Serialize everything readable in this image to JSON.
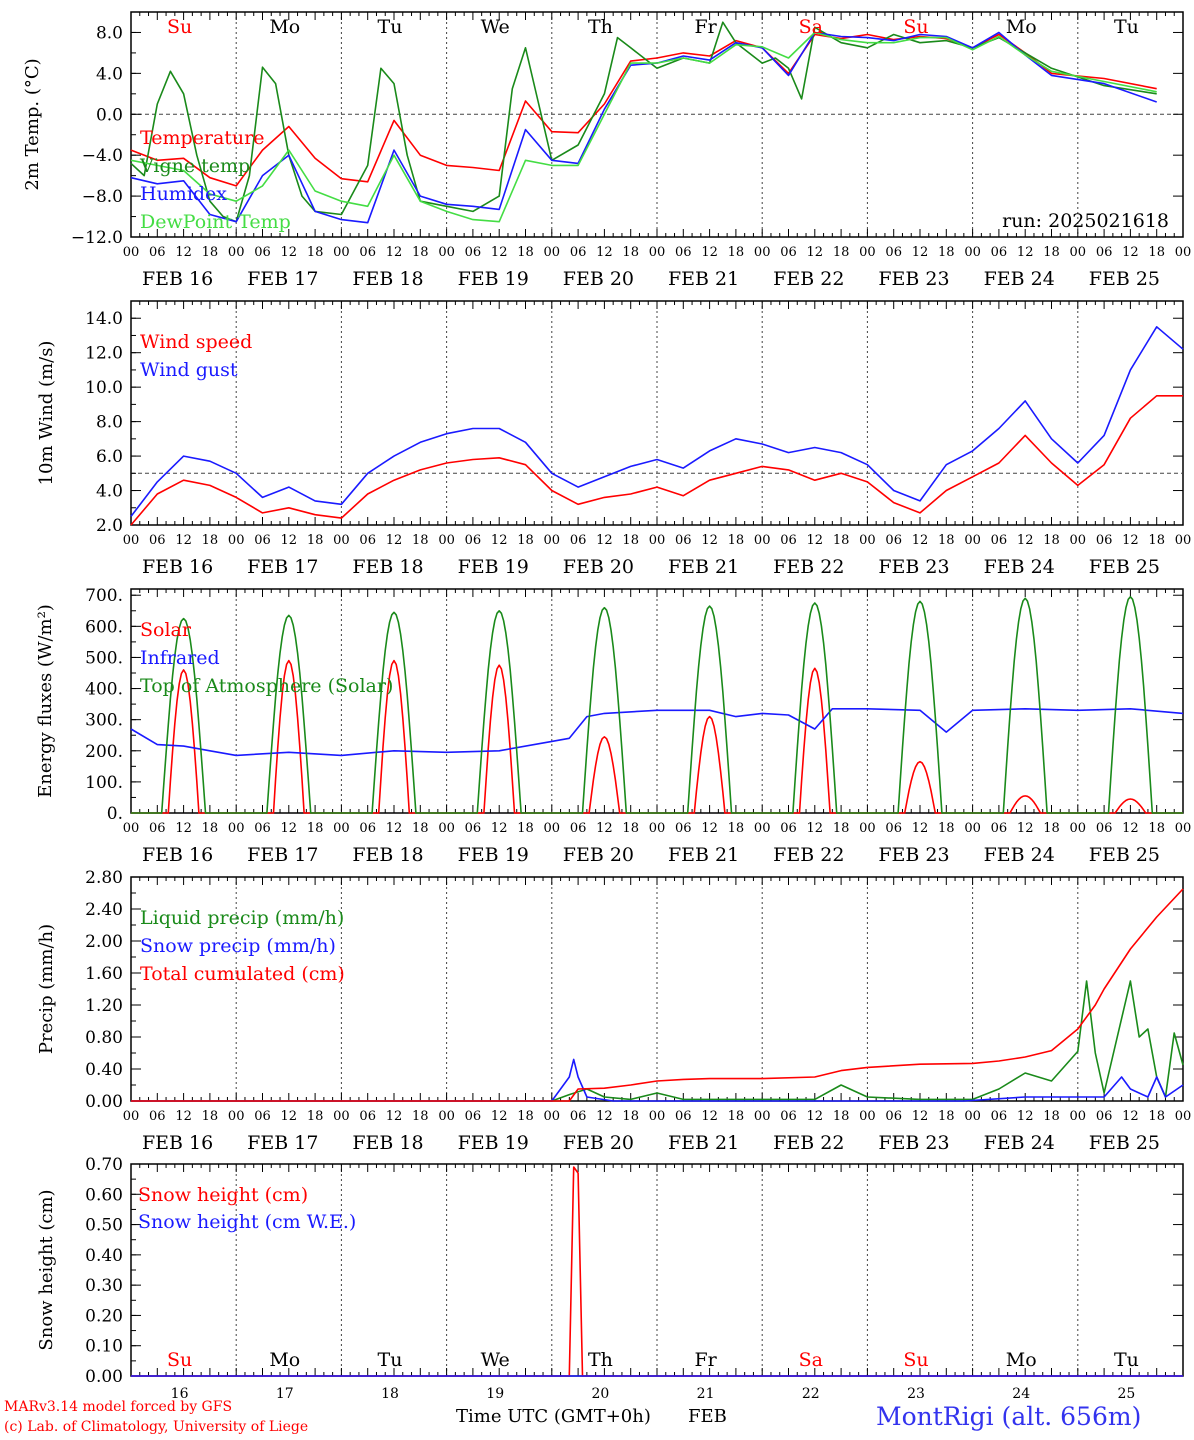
{
  "run_label": "run: 2025021618",
  "colors": {
    "red": "#ff0000",
    "green": "#1a8a1a",
    "blue": "#1a1aff",
    "lightgreen": "#44dd44",
    "axis": "#000000"
  },
  "weekdays": [
    "Su",
    "Mo",
    "Tu",
    "We",
    "Th",
    "Fr",
    "Sa",
    "Su",
    "Mo",
    "Tu"
  ],
  "weekday_colors": [
    "red",
    "black",
    "black",
    "black",
    "black",
    "black",
    "red",
    "red",
    "black",
    "black"
  ],
  "date_labels": [
    "FEB 16",
    "FEB 17",
    "FEB 18",
    "FEB 19",
    "FEB 20",
    "FEB 21",
    "FEB 22",
    "FEB 23",
    "FEB 24",
    "FEB 25"
  ],
  "day_numbers": [
    "16",
    "17",
    "18",
    "19",
    "20",
    "21",
    "22",
    "23",
    "24",
    "25"
  ],
  "hour_ticks": [
    "00",
    "06",
    "12",
    "18"
  ],
  "footer": {
    "model": "MARv3.14 model forced by GFS",
    "copyright": "(c) Lab. of Climatology, University of Liege",
    "xlabel": "Time UTC (GMT+0h)",
    "month": "FEB",
    "station": "MontRigi (alt. 656m)"
  },
  "chart_data": [
    {
      "type": "line",
      "ylabel": "2m Temp. (°C)",
      "ylim": [
        -12,
        10
      ],
      "yticks": [
        -12,
        -8,
        -4,
        0,
        4,
        8
      ],
      "tick_labels": [
        "−12.0",
        "−8.0",
        "−4.0",
        "0.0",
        "4.0",
        "8.0"
      ],
      "reference_line": 0,
      "x_unit": "hours since FEB 16 00 UTC",
      "series": [
        {
          "name": "Temperature",
          "color": "red",
          "x": [
            0,
            6,
            12,
            18,
            24,
            30,
            36,
            42,
            48,
            54,
            60,
            66,
            72,
            78,
            84,
            90,
            96,
            102,
            108,
            114,
            120,
            126,
            132,
            138,
            144,
            150,
            156,
            162,
            168,
            174,
            180,
            186,
            192,
            198,
            204,
            210,
            222,
            234
          ],
          "values": [
            -3.5,
            -4.5,
            -4.3,
            -6.2,
            -7.0,
            -3.5,
            -1.2,
            -4.3,
            -6.3,
            -6.6,
            -0.6,
            -4.0,
            -5.0,
            -5.2,
            -5.5,
            1.3,
            -1.7,
            -1.8,
            1.0,
            5.2,
            5.5,
            6.0,
            5.7,
            7.2,
            6.5,
            4.0,
            7.8,
            7.4,
            7.8,
            7.3,
            7.6,
            7.4,
            6.5,
            7.8,
            6.0,
            4.0,
            3.5,
            2.5
          ]
        },
        {
          "name": "Vigne temp",
          "color": "green",
          "x": [
            0,
            3,
            6,
            9,
            12,
            15,
            18,
            21,
            24,
            27,
            30,
            33,
            36,
            39,
            42,
            48,
            54,
            57,
            60,
            63,
            66,
            72,
            78,
            84,
            87,
            90,
            93,
            96,
            102,
            108,
            111,
            114,
            120,
            126,
            132,
            135,
            138,
            144,
            147,
            150,
            153,
            156,
            162,
            168,
            174,
            180,
            186,
            192,
            198,
            204,
            210,
            222,
            234
          ],
          "values": [
            -4.8,
            -6.0,
            1.0,
            4.2,
            2.0,
            -4.0,
            -8.5,
            -10.0,
            -10.5,
            -6.0,
            4.6,
            3.0,
            -4.0,
            -8.0,
            -9.5,
            -9.8,
            -5.0,
            4.5,
            3.0,
            -4.0,
            -8.5,
            -9.0,
            -9.5,
            -8.0,
            2.5,
            6.5,
            1.0,
            -4.5,
            -3.0,
            2.0,
            7.5,
            6.5,
            4.5,
            5.5,
            5.0,
            9.0,
            7.0,
            5.0,
            5.5,
            4.5,
            1.5,
            8.5,
            7.0,
            6.5,
            7.8,
            7.0,
            7.2,
            6.5,
            7.5,
            6.0,
            4.5,
            2.8,
            2.0
          ]
        },
        {
          "name": "Humidex",
          "color": "blue",
          "x": [
            0,
            6,
            12,
            18,
            24,
            30,
            36,
            42,
            48,
            54,
            60,
            66,
            72,
            78,
            84,
            90,
            96,
            102,
            108,
            114,
            120,
            126,
            132,
            138,
            144,
            150,
            156,
            162,
            168,
            174,
            180,
            186,
            192,
            198,
            204,
            210,
            222,
            234
          ],
          "values": [
            -6.2,
            -6.8,
            -6.5,
            -9.8,
            -10.5,
            -6.0,
            -4.0,
            -9.5,
            -10.3,
            -10.6,
            -3.5,
            -8.0,
            -8.8,
            -9.0,
            -9.3,
            -1.5,
            -4.5,
            -4.8,
            0.5,
            4.8,
            5.0,
            5.7,
            5.3,
            7.0,
            6.5,
            3.8,
            8.0,
            7.6,
            7.5,
            7.2,
            7.8,
            7.6,
            6.5,
            8.0,
            5.8,
            3.8,
            3.0,
            1.2
          ]
        },
        {
          "name": "DewPoint Temp",
          "color": "lightgreen",
          "x": [
            0,
            6,
            12,
            18,
            24,
            30,
            36,
            42,
            48,
            54,
            60,
            66,
            72,
            78,
            84,
            90,
            96,
            102,
            108,
            114,
            120,
            126,
            132,
            138,
            144,
            150,
            156,
            162,
            168,
            174,
            180,
            186,
            192,
            198,
            204,
            210,
            222,
            234
          ],
          "values": [
            -4.5,
            -5.0,
            -5.5,
            -7.8,
            -8.5,
            -7.0,
            -3.5,
            -7.5,
            -8.5,
            -9.0,
            -4.0,
            -8.5,
            -9.5,
            -10.3,
            -10.5,
            -4.5,
            -5.0,
            -5.0,
            0.0,
            5.0,
            5.0,
            5.5,
            5.0,
            6.8,
            6.6,
            5.5,
            8.0,
            7.3,
            7.0,
            7.0,
            7.5,
            7.5,
            6.3,
            7.6,
            5.8,
            4.2,
            3.2,
            2.2
          ]
        }
      ]
    },
    {
      "type": "line",
      "ylabel": "10m Wind (m/s)",
      "ylim": [
        2,
        15
      ],
      "yticks": [
        2,
        4,
        6,
        8,
        10,
        12,
        14
      ],
      "tick_labels": [
        "2.0",
        "4.0",
        "6.0",
        "8.0",
        "10.0",
        "12.0",
        "14.0"
      ],
      "reference_line": 5,
      "x_unit": "hours since FEB 16 00 UTC",
      "series": [
        {
          "name": "Wind speed",
          "color": "red",
          "x": [
            0,
            6,
            12,
            18,
            24,
            30,
            36,
            42,
            48,
            54,
            60,
            66,
            72,
            78,
            84,
            90,
            96,
            102,
            108,
            114,
            120,
            126,
            132,
            138,
            144,
            150,
            156,
            162,
            168,
            174,
            180,
            186,
            192,
            198,
            204,
            210,
            216,
            222,
            228,
            234,
            240
          ],
          "values": [
            2.0,
            3.8,
            4.6,
            4.3,
            3.6,
            2.7,
            3.0,
            2.6,
            2.4,
            3.8,
            4.6,
            5.2,
            5.6,
            5.8,
            5.9,
            5.5,
            4.0,
            3.2,
            3.6,
            3.8,
            4.2,
            3.7,
            4.6,
            5.0,
            5.4,
            5.2,
            4.6,
            5.0,
            4.5,
            3.3,
            2.7,
            4.0,
            4.8,
            5.6,
            7.2,
            5.6,
            4.3,
            5.5,
            8.2,
            9.5,
            9.5
          ]
        },
        {
          "name": "Wind gust",
          "color": "blue",
          "x": [
            0,
            6,
            12,
            18,
            24,
            30,
            36,
            42,
            48,
            54,
            60,
            66,
            72,
            78,
            84,
            90,
            96,
            102,
            108,
            114,
            120,
            126,
            132,
            138,
            144,
            150,
            156,
            162,
            168,
            174,
            180,
            186,
            192,
            198,
            204,
            210,
            216,
            222,
            228,
            234,
            240
          ],
          "values": [
            2.5,
            4.5,
            6.0,
            5.7,
            5.0,
            3.6,
            4.2,
            3.4,
            3.2,
            5.0,
            6.0,
            6.8,
            7.3,
            7.6,
            7.6,
            6.8,
            5.0,
            4.2,
            4.8,
            5.4,
            5.8,
            5.3,
            6.3,
            7.0,
            6.7,
            6.2,
            6.5,
            6.2,
            5.5,
            4.0,
            3.4,
            5.5,
            6.3,
            7.6,
            9.2,
            7.0,
            5.6,
            7.2,
            11.0,
            13.5,
            12.2
          ]
        }
      ]
    },
    {
      "type": "line",
      "ylabel": "Energy fluxes (W/m2)",
      "ylim": [
        0,
        720
      ],
      "yticks": [
        0,
        100,
        200,
        300,
        400,
        500,
        600,
        700
      ],
      "tick_labels": [
        "0.",
        "100.",
        "200.",
        "300.",
        "400.",
        "500.",
        "600.",
        "700."
      ],
      "x_unit": "hours since FEB 16 00 UTC",
      "series": [
        {
          "name": "Solar",
          "color": "red",
          "peaks": [
            460,
            490,
            490,
            475,
            245,
            310,
            465,
            165,
            55,
            45
          ]
        },
        {
          "name": "Infrared",
          "color": "blue",
          "x": [
            0,
            6,
            12,
            18,
            24,
            36,
            48,
            60,
            72,
            84,
            96,
            100,
            104,
            108,
            120,
            132,
            138,
            144,
            150,
            156,
            160,
            168,
            180,
            186,
            192,
            204,
            216,
            228,
            240
          ],
          "values": [
            270,
            220,
            215,
            200,
            185,
            195,
            185,
            200,
            195,
            200,
            230,
            240,
            310,
            320,
            330,
            330,
            310,
            320,
            315,
            270,
            335,
            335,
            330,
            260,
            330,
            335,
            330,
            335,
            320
          ]
        },
        {
          "name": "Top of Atmosphere (Solar)",
          "color": "green",
          "peaks": [
            625,
            635,
            645,
            650,
            660,
            665,
            675,
            680,
            690,
            695
          ]
        }
      ]
    },
    {
      "type": "line",
      "ylabel": "Precip (mm/h)",
      "ylim": [
        0,
        2.8
      ],
      "yticks": [
        0,
        0.4,
        0.8,
        1.2,
        1.6,
        2.0,
        2.4,
        2.8
      ],
      "tick_labels": [
        "0.00",
        "0.40",
        "0.80",
        "1.20",
        "1.60",
        "2.00",
        "2.40",
        "2.80"
      ],
      "x_unit": "hours since FEB 16 00 UTC",
      "series": [
        {
          "name": "Liquid precip (mm/h)",
          "color": "green",
          "x": [
            0,
            96,
            100,
            104,
            108,
            114,
            120,
            126,
            156,
            162,
            168,
            180,
            192,
            198,
            204,
            210,
            216,
            218,
            220,
            222,
            228,
            230,
            232,
            234,
            236,
            238,
            240
          ],
          "values": [
            0,
            0,
            0.08,
            0.15,
            0.05,
            0.02,
            0.1,
            0.02,
            0.02,
            0.2,
            0.05,
            0.02,
            0.02,
            0.15,
            0.35,
            0.25,
            0.62,
            1.5,
            0.6,
            0.1,
            1.5,
            0.8,
            0.9,
            0.3,
            0.05,
            0.85,
            0.45
          ]
        },
        {
          "name": "Snow precip (mm/h)",
          "color": "blue",
          "x": [
            0,
            96,
            100,
            101,
            102,
            104,
            110,
            190,
            204,
            216,
            222,
            226,
            228,
            232,
            234,
            236,
            240
          ],
          "values": [
            0,
            0,
            0.3,
            0.52,
            0.3,
            0.05,
            0,
            0,
            0.05,
            0.05,
            0.05,
            0.3,
            0.15,
            0.05,
            0.3,
            0.05,
            0.2
          ]
        },
        {
          "name": "Total cumulated (cm)",
          "color": "red",
          "x": [
            0,
            100,
            102,
            108,
            114,
            120,
            126,
            132,
            144,
            156,
            162,
            168,
            180,
            192,
            198,
            204,
            210,
            216,
            220,
            222,
            228,
            234,
            240
          ],
          "values": [
            0,
            0,
            0.15,
            0.16,
            0.2,
            0.25,
            0.27,
            0.28,
            0.28,
            0.3,
            0.38,
            0.42,
            0.46,
            0.47,
            0.5,
            0.55,
            0.63,
            0.9,
            1.2,
            1.4,
            1.9,
            2.3,
            2.65
          ]
        }
      ]
    },
    {
      "type": "line",
      "ylabel": "Snow height (cm)",
      "ylim": [
        0,
        0.7
      ],
      "yticks": [
        0,
        0.1,
        0.2,
        0.3,
        0.4,
        0.5,
        0.6,
        0.7
      ],
      "tick_labels": [
        "0.00",
        "0.10",
        "0.20",
        "0.30",
        "0.40",
        "0.50",
        "0.60",
        "0.70"
      ],
      "x_unit": "hours since FEB 16 00 UTC",
      "series": [
        {
          "name": "Snow height (cm)",
          "color": "red",
          "x": [
            0,
            100,
            101,
            102,
            103,
            240
          ],
          "values": [
            0,
            0,
            0.69,
            0.67,
            0,
            0
          ]
        },
        {
          "name": "Snow height (cm W.E.)",
          "color": "blue",
          "x": [
            0,
            240
          ],
          "values": [
            0,
            0
          ]
        }
      ]
    }
  ]
}
